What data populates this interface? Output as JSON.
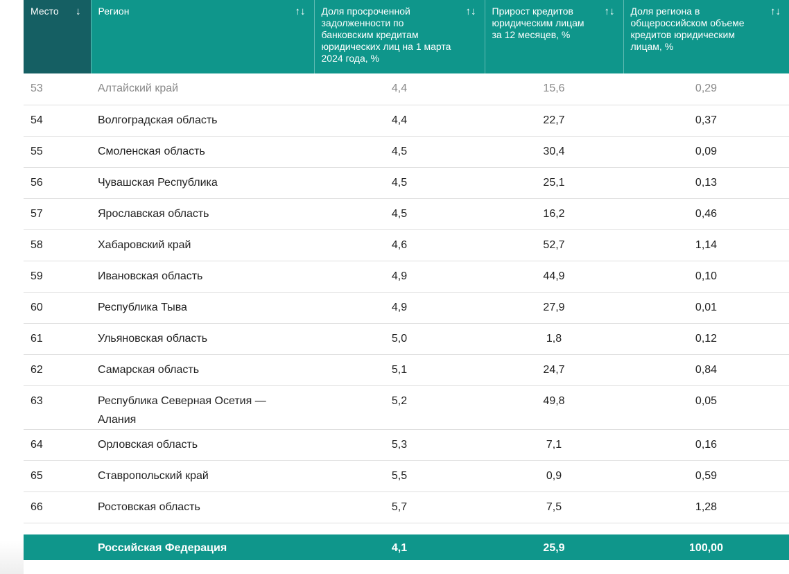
{
  "colors": {
    "header": "#0f968b",
    "sorted_header": "#155f63"
  },
  "headers": [
    {
      "label": "Место",
      "sort_icon": "↓"
    },
    {
      "label": "Регион",
      "sort_icon": "↑↓"
    },
    {
      "label": "Доля просроченной задолженности по банковским кредитам юридических лиц на 1 марта 2024 года, %",
      "sort_icon": "↑↓"
    },
    {
      "label": "Прирост кредитов юридическим лицам за 12 месяцев, %",
      "sort_icon": "↑↓"
    },
    {
      "label": "Доля региона в общероссийском объеме кредитов юридическим лицам, %",
      "sort_icon": "↑↓"
    }
  ],
  "rows": [
    [
      "53",
      "Алтайский край",
      "4,4",
      "15,6",
      "0,29"
    ],
    [
      "54",
      "Волгоградская область",
      "4,4",
      "22,7",
      "0,37"
    ],
    [
      "55",
      "Смоленская область",
      "4,5",
      "30,4",
      "0,09"
    ],
    [
      "56",
      "Чувашская Республика",
      "4,5",
      "25,1",
      "0,13"
    ],
    [
      "57",
      "Ярославская область",
      "4,5",
      "16,2",
      "0,46"
    ],
    [
      "58",
      "Хабаровский край",
      "4,6",
      "52,7",
      "1,14"
    ],
    [
      "59",
      "Ивановская область",
      "4,9",
      "44,9",
      "0,10"
    ],
    [
      "60",
      "Республика Тыва",
      "4,9",
      "27,9",
      "0,01"
    ],
    [
      "61",
      "Ульяновская область",
      "5,0",
      "1,8",
      "0,12"
    ],
    [
      "62",
      "Самарская область",
      "5,1",
      "24,7",
      "0,84"
    ],
    [
      "63",
      "Республика Северная Осетия — Алания",
      "5,2",
      "49,8",
      "0,05"
    ],
    [
      "64",
      "Орловская область",
      "5,3",
      "7,1",
      "0,16"
    ],
    [
      "65",
      "Ставропольский край",
      "5,5",
      "0,9",
      "0,59"
    ],
    [
      "66",
      "Ростовская область",
      "5,7",
      "7,5",
      "1,28"
    ]
  ],
  "total": [
    "",
    "Российская Федерация",
    "4,1",
    "25,9",
    "100,00"
  ]
}
